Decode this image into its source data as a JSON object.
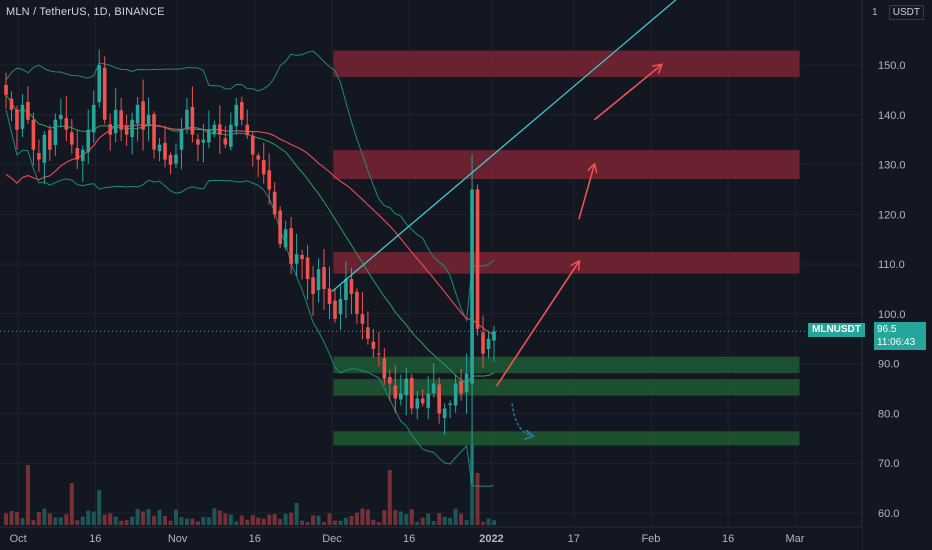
{
  "header": {
    "symbol_line": "MLN / TetherUS, 1D, BINANCE",
    "currency": "USDT",
    "currency_prefix": "1"
  },
  "price_badge": {
    "symbol": "MLNUSDT",
    "price": "96.5",
    "countdown": "11:06:43"
  },
  "colors": {
    "background": "#131722",
    "up": "#26a69a",
    "down": "#ef5350",
    "bollinger": "#1e8a7a",
    "ma": "#e0494f",
    "resistance_zone": "#7a2533",
    "support_zone": "#1f5a33",
    "trendline": "#3fd2d8"
  },
  "chart_data": {
    "type": "candlestick",
    "title": "MLN / TetherUS, 1D, BINANCE",
    "y_axis": {
      "ticks": [
        "60.0",
        "70.0",
        "80.0",
        "90.0",
        "100.0",
        "110.0",
        "120.0",
        "130.0",
        "140.0",
        "150.0"
      ],
      "range": [
        57,
        170
      ]
    },
    "x_axis": {
      "ticks": [
        "Oct",
        "16",
        "Nov",
        "16",
        "Dec",
        "16",
        "2022",
        "17",
        "Feb",
        "16",
        "Mar"
      ],
      "range": [
        "2021-09-30",
        "2022-03-01"
      ]
    },
    "current_price": 96.5,
    "candles_daily_close": [
      144,
      141,
      137,
      142,
      139,
      133,
      131,
      136,
      133,
      139,
      140,
      137,
      134,
      131,
      133,
      137,
      142,
      150,
      139,
      136,
      141,
      137,
      136,
      139,
      142,
      137,
      140,
      133,
      134,
      131,
      130,
      132,
      137,
      141,
      136,
      134,
      135,
      137,
      138,
      136,
      134,
      138,
      142,
      139,
      136,
      132,
      131,
      128,
      125,
      120,
      114,
      117,
      110,
      112,
      111,
      107,
      104,
      109,
      105,
      102,
      99,
      103,
      107,
      104,
      100,
      98,
      95,
      93,
      92,
      87,
      86,
      83,
      84,
      87,
      81,
      83,
      82,
      84,
      86,
      80,
      81,
      82,
      86,
      84,
      88,
      125,
      97,
      92,
      95,
      96.5
    ],
    "resistance_zones": [
      [
        147.5,
        153
      ],
      [
        127,
        133
      ],
      [
        108,
        112.5
      ]
    ],
    "support_zones": [
      [
        88,
        91.5
      ],
      [
        83.5,
        87
      ],
      [
        73.5,
        76.5
      ]
    ],
    "trendline": {
      "from": {
        "date": "2021-12-01",
        "price": 104.5
      },
      "to": {
        "date": "2022-02-16",
        "price": 172
      }
    },
    "projection_arrows": [
      {
        "from": {
          "date": "2022-01-02",
          "price": 85.5
        },
        "to": {
          "date": "2022-01-18",
          "price": 110.5
        }
      },
      {
        "from": {
          "date": "2022-01-18",
          "price": 119
        },
        "to": {
          "date": "2022-01-21",
          "price": 130
        }
      },
      {
        "from": {
          "date": "2022-01-21",
          "price": 139
        },
        "to": {
          "date": "2022-02-03",
          "price": 150
        }
      }
    ],
    "down_arrow": {
      "from": {
        "date": "2022-01-05",
        "price": 82
      },
      "to": {
        "date": "2022-01-09",
        "price": 75.5
      }
    },
    "volume_bars": true,
    "indicators": [
      "Bollinger Bands",
      "Moving Average"
    ]
  }
}
